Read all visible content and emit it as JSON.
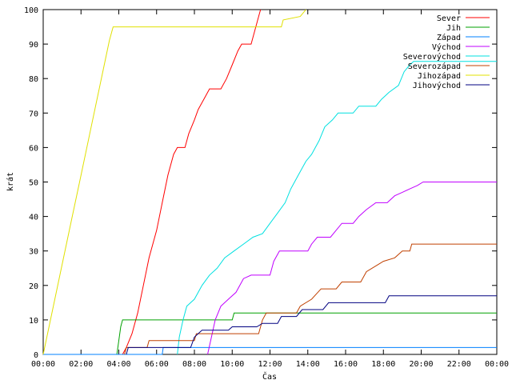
{
  "chart_data": {
    "type": "line",
    "xlabel": "Čas",
    "ylabel": "krát",
    "xlim": [
      0,
      24
    ],
    "ylim": [
      0,
      100
    ],
    "xticks": [
      {
        "v": 0,
        "label": "00:00"
      },
      {
        "v": 2,
        "label": "02:00"
      },
      {
        "v": 4,
        "label": "04:00"
      },
      {
        "v": 6,
        "label": "06:00"
      },
      {
        "v": 8,
        "label": "08:00"
      },
      {
        "v": 10,
        "label": "10:00"
      },
      {
        "v": 12,
        "label": "12:00"
      },
      {
        "v": 14,
        "label": "14:00"
      },
      {
        "v": 16,
        "label": "16:00"
      },
      {
        "v": 18,
        "label": "18:00"
      },
      {
        "v": 20,
        "label": "20:00"
      },
      {
        "v": 22,
        "label": "22:00"
      },
      {
        "v": 24,
        "label": "00:00"
      }
    ],
    "yticks": [
      {
        "v": 0,
        "label": "0"
      },
      {
        "v": 10,
        "label": "10"
      },
      {
        "v": 20,
        "label": "20"
      },
      {
        "v": 30,
        "label": "30"
      },
      {
        "v": 40,
        "label": "40"
      },
      {
        "v": 50,
        "label": "50"
      },
      {
        "v": 60,
        "label": "60"
      },
      {
        "v": 70,
        "label": "70"
      },
      {
        "v": 80,
        "label": "80"
      },
      {
        "v": 90,
        "label": "90"
      },
      {
        "v": 100,
        "label": "100"
      }
    ],
    "grid": false,
    "legend_position": "top-right",
    "series": [
      {
        "name": "Sever",
        "color": "#ff0000",
        "points": [
          [
            4.2,
            0
          ],
          [
            4.4,
            2
          ],
          [
            4.7,
            6
          ],
          [
            5.0,
            12
          ],
          [
            5.3,
            20
          ],
          [
            5.6,
            28
          ],
          [
            6.0,
            36
          ],
          [
            6.3,
            44
          ],
          [
            6.6,
            52
          ],
          [
            6.9,
            58
          ],
          [
            7.1,
            60
          ],
          [
            7.5,
            60
          ],
          [
            7.7,
            64
          ],
          [
            8.0,
            68
          ],
          [
            8.2,
            71
          ],
          [
            8.5,
            74
          ],
          [
            8.8,
            77
          ],
          [
            9.4,
            77
          ],
          [
            9.7,
            80
          ],
          [
            10.0,
            84
          ],
          [
            10.3,
            88
          ],
          [
            10.5,
            90
          ],
          [
            11.0,
            90
          ],
          [
            11.2,
            94
          ],
          [
            11.4,
            98
          ],
          [
            11.5,
            100
          ]
        ]
      },
      {
        "name": "Jih",
        "color": "#00a000",
        "points": [
          [
            3.9,
            0
          ],
          [
            4.0,
            4
          ],
          [
            4.1,
            8
          ],
          [
            4.2,
            10
          ],
          [
            10.0,
            10
          ],
          [
            10.1,
            12
          ],
          [
            24,
            12
          ]
        ]
      },
      {
        "name": "Západ",
        "color": "#0080ff",
        "points": [
          [
            0,
            0
          ],
          [
            6.3,
            0
          ],
          [
            6.35,
            2
          ],
          [
            24,
            2
          ]
        ]
      },
      {
        "name": "Východ",
        "color": "#c000ff",
        "points": [
          [
            8.7,
            0
          ],
          [
            8.9,
            5
          ],
          [
            9.1,
            10
          ],
          [
            9.4,
            14
          ],
          [
            9.8,
            16
          ],
          [
            10.2,
            18
          ],
          [
            10.6,
            22
          ],
          [
            11.0,
            23
          ],
          [
            12.0,
            23
          ],
          [
            12.2,
            27
          ],
          [
            12.5,
            30
          ],
          [
            14.0,
            30
          ],
          [
            14.2,
            32
          ],
          [
            14.5,
            34
          ],
          [
            15.2,
            34
          ],
          [
            15.5,
            36
          ],
          [
            15.8,
            38
          ],
          [
            16.4,
            38
          ],
          [
            16.7,
            40
          ],
          [
            17.1,
            42
          ],
          [
            17.6,
            44
          ],
          [
            18.2,
            44
          ],
          [
            18.6,
            46
          ],
          [
            19.0,
            47
          ],
          [
            19.4,
            48
          ],
          [
            19.8,
            49
          ],
          [
            20.1,
            50
          ],
          [
            24,
            50
          ]
        ]
      },
      {
        "name": "Severovýchod",
        "color": "#00e0e0",
        "points": [
          [
            7.1,
            0
          ],
          [
            7.2,
            5
          ],
          [
            7.4,
            10
          ],
          [
            7.6,
            14
          ],
          [
            8.0,
            16
          ],
          [
            8.4,
            20
          ],
          [
            8.8,
            23
          ],
          [
            9.2,
            25
          ],
          [
            9.6,
            28
          ],
          [
            10.1,
            30
          ],
          [
            10.6,
            32
          ],
          [
            11.1,
            34
          ],
          [
            11.6,
            35
          ],
          [
            12.0,
            38
          ],
          [
            12.4,
            41
          ],
          [
            12.8,
            44
          ],
          [
            13.1,
            48
          ],
          [
            13.5,
            52
          ],
          [
            13.9,
            56
          ],
          [
            14.2,
            58
          ],
          [
            14.6,
            62
          ],
          [
            14.9,
            66
          ],
          [
            15.3,
            68
          ],
          [
            15.6,
            70
          ],
          [
            16.4,
            70
          ],
          [
            16.7,
            72
          ],
          [
            17.6,
            72
          ],
          [
            17.9,
            74
          ],
          [
            18.3,
            76
          ],
          [
            18.8,
            78
          ],
          [
            19.1,
            82
          ],
          [
            19.4,
            84
          ],
          [
            19.6,
            85
          ],
          [
            24,
            85
          ]
        ]
      },
      {
        "name": "Severozápad",
        "color": "#c04000",
        "points": [
          [
            4.3,
            0
          ],
          [
            4.4,
            2
          ],
          [
            5.5,
            2
          ],
          [
            5.6,
            4
          ],
          [
            8.0,
            4
          ],
          [
            8.1,
            6
          ],
          [
            11.4,
            6
          ],
          [
            11.6,
            10
          ],
          [
            11.8,
            12
          ],
          [
            13.4,
            12
          ],
          [
            13.6,
            14
          ],
          [
            14.2,
            16
          ],
          [
            14.7,
            19
          ],
          [
            15.5,
            19
          ],
          [
            15.8,
            21
          ],
          [
            16.8,
            21
          ],
          [
            17.1,
            24
          ],
          [
            17.7,
            26
          ],
          [
            18.0,
            27
          ],
          [
            18.6,
            28
          ],
          [
            19.0,
            30
          ],
          [
            19.4,
            30
          ],
          [
            19.5,
            32
          ],
          [
            24,
            32
          ]
        ]
      },
      {
        "name": "Jihozápad",
        "color": "#e0e000",
        "points": [
          [
            0,
            0
          ],
          [
            0.5,
            13
          ],
          [
            1.0,
            26
          ],
          [
            1.5,
            39
          ],
          [
            2.0,
            52
          ],
          [
            2.5,
            65
          ],
          [
            3.0,
            78
          ],
          [
            3.5,
            91
          ],
          [
            3.7,
            95
          ],
          [
            12.6,
            95
          ],
          [
            12.7,
            97
          ],
          [
            13.6,
            98
          ],
          [
            13.9,
            100
          ]
        ]
      },
      {
        "name": "Jihovýchod",
        "color": "#000080",
        "points": [
          [
            4.4,
            0
          ],
          [
            4.5,
            2
          ],
          [
            7.8,
            2
          ],
          [
            8.0,
            5
          ],
          [
            8.4,
            7
          ],
          [
            9.8,
            7
          ],
          [
            10.0,
            8
          ],
          [
            11.3,
            8
          ],
          [
            11.6,
            9
          ],
          [
            12.4,
            9
          ],
          [
            12.6,
            11
          ],
          [
            13.4,
            11
          ],
          [
            13.7,
            13
          ],
          [
            14.8,
            13
          ],
          [
            15.1,
            15
          ],
          [
            18.1,
            15
          ],
          [
            18.3,
            17
          ],
          [
            24,
            17
          ]
        ]
      }
    ]
  }
}
